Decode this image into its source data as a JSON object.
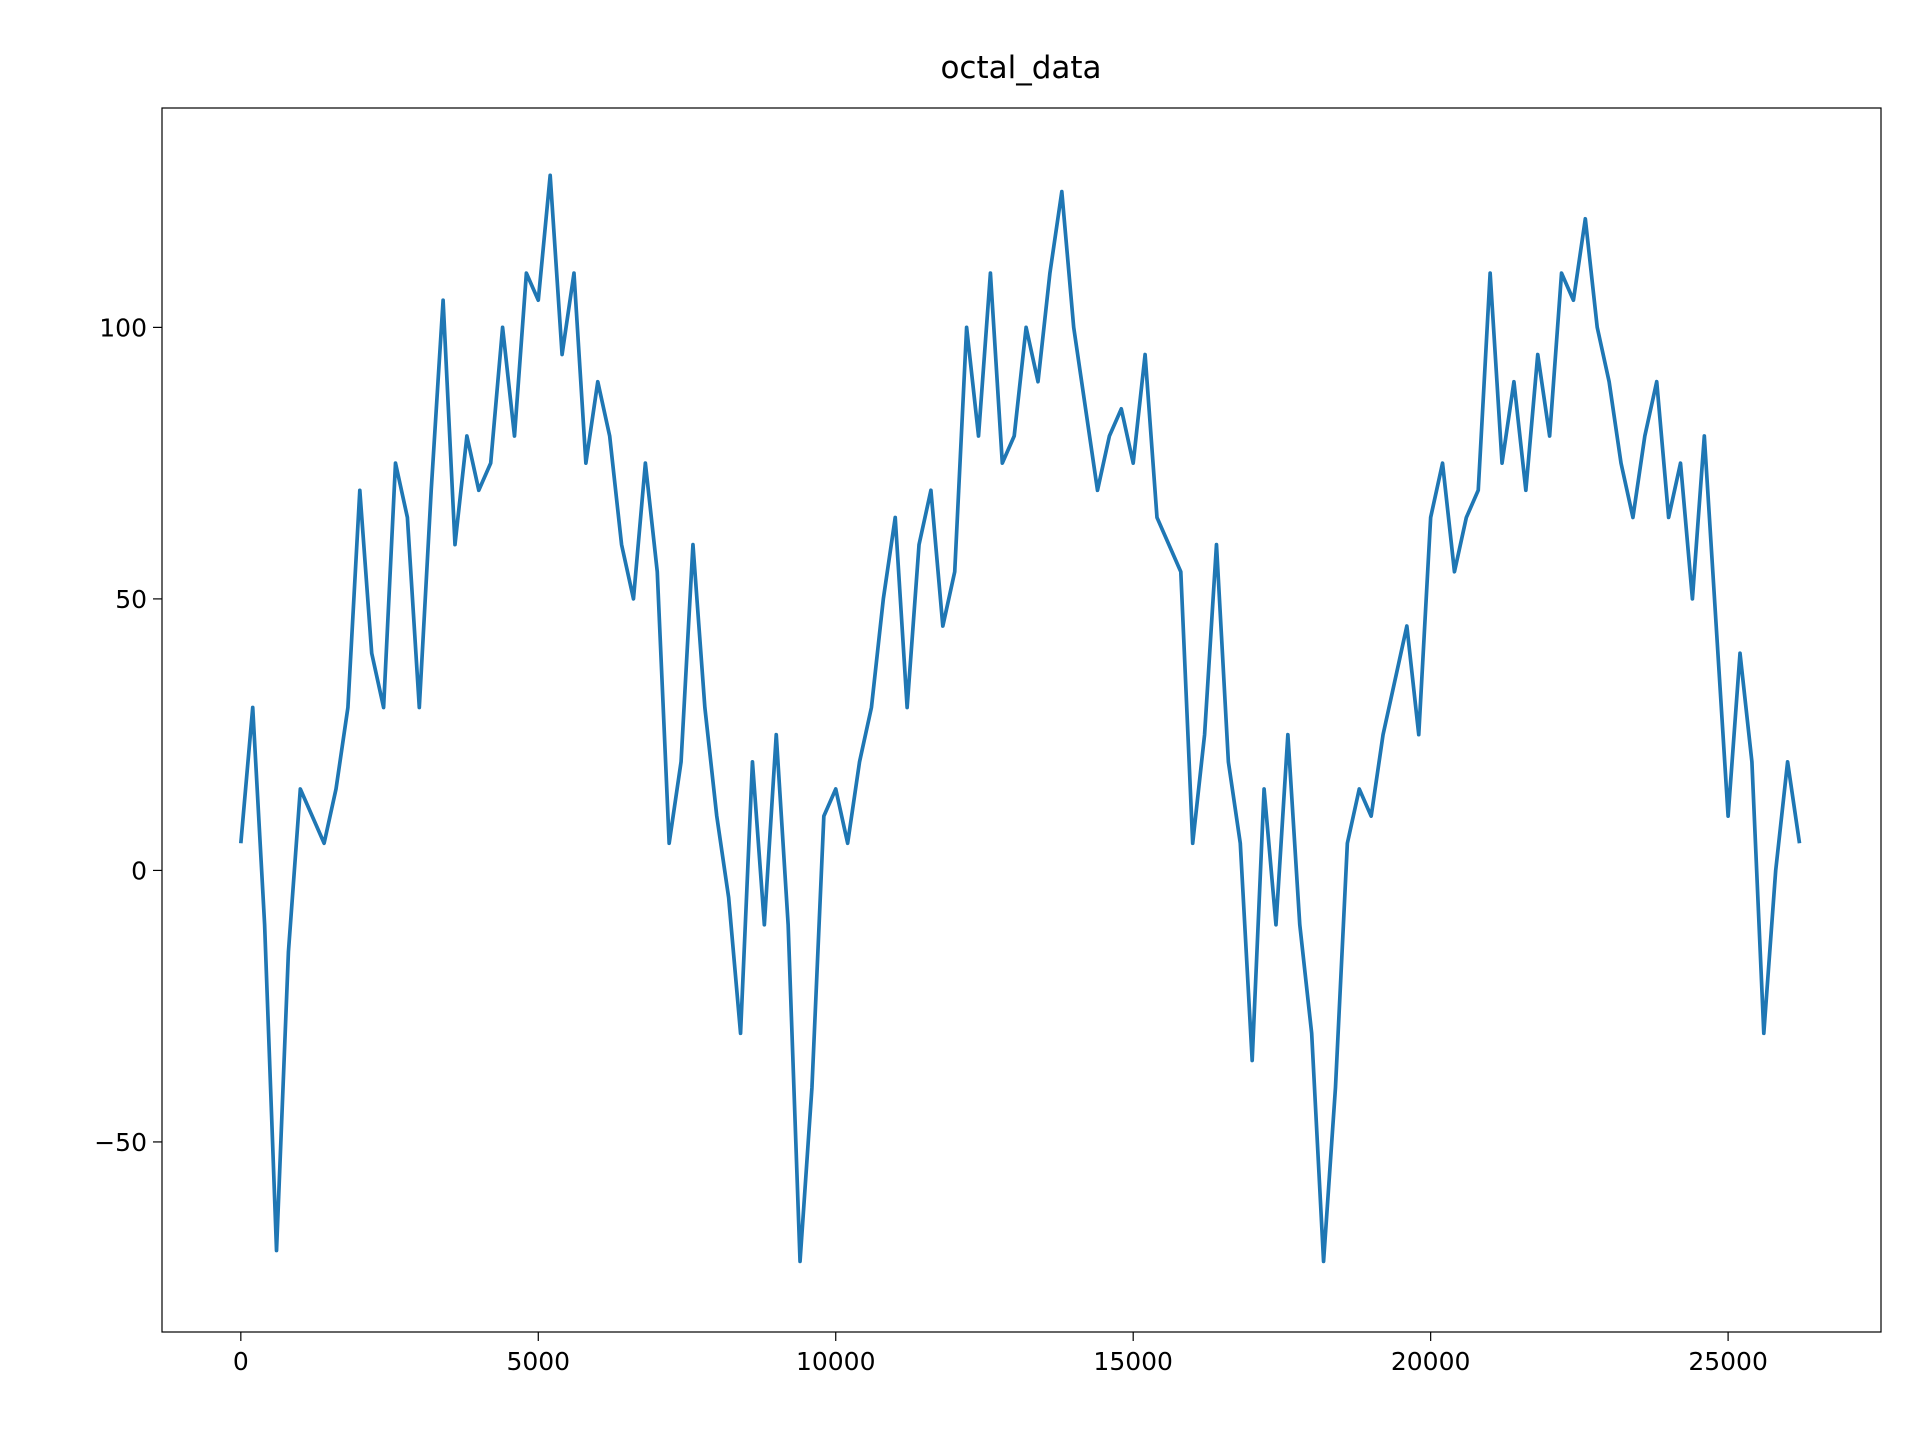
{
  "chart_data": {
    "type": "line",
    "title": "octal_data",
    "x": [
      0,
      200,
      400,
      600,
      800,
      1000,
      1200,
      1400,
      1600,
      1800,
      2000,
      2200,
      2400,
      2600,
      2800,
      3000,
      3200,
      3400,
      3600,
      3800,
      4000,
      4200,
      4400,
      4600,
      4800,
      5000,
      5200,
      5400,
      5600,
      5800,
      6000,
      6200,
      6400,
      6600,
      6800,
      7000,
      7200,
      7400,
      7600,
      7800,
      8000,
      8200,
      8400,
      8600,
      8800,
      9000,
      9200,
      9400,
      9600,
      9800,
      10000,
      10200,
      10400,
      10600,
      10800,
      11000,
      11200,
      11400,
      11600,
      11800,
      12000,
      12200,
      12400,
      12600,
      12800,
      13000,
      13200,
      13400,
      13600,
      13800,
      14000,
      14200,
      14400,
      14600,
      14800,
      15000,
      15200,
      15400,
      15600,
      15800,
      16000,
      16200,
      16400,
      16600,
      16800,
      17000,
      17200,
      17400,
      17600,
      17800,
      18000,
      18200,
      18400,
      18600,
      18800,
      19000,
      19200,
      19400,
      19600,
      19800,
      20000,
      20200,
      20400,
      20600,
      20800,
      21000,
      21200,
      21400,
      21600,
      21800,
      22000,
      22200,
      22400,
      22600,
      22800,
      23000,
      23200,
      23400,
      23600,
      23800,
      24000,
      24200,
      24400,
      24600,
      24800,
      25000,
      25200,
      25400,
      25600,
      25800,
      26000,
      26200
    ],
    "series": [
      {
        "color": "#1f77b4",
        "values": [
          5,
          30,
          -10,
          -70,
          -15,
          15,
          10,
          5,
          15,
          30,
          70,
          40,
          30,
          75,
          65,
          30,
          70,
          105,
          60,
          80,
          70,
          75,
          100,
          80,
          110,
          105,
          128,
          95,
          110,
          75,
          90,
          80,
          60,
          50,
          75,
          55,
          5,
          20,
          60,
          30,
          10,
          -5,
          -30,
          20,
          -10,
          25,
          -10,
          -72,
          -40,
          10,
          15,
          5,
          20,
          30,
          50,
          65,
          30,
          60,
          70,
          45,
          55,
          100,
          80,
          110,
          75,
          80,
          100,
          90,
          110,
          125,
          100,
          85,
          70,
          80,
          85,
          75,
          95,
          65,
          60,
          55,
          5,
          25,
          60,
          20,
          5,
          -35,
          15,
          -10,
          25,
          -10,
          -30,
          -72,
          -40,
          5,
          15,
          10,
          25,
          35,
          45,
          25,
          65,
          75,
          55,
          65,
          70,
          110,
          75,
          90,
          70,
          95,
          80,
          110,
          105,
          120,
          100,
          90,
          75,
          65,
          80,
          90,
          65,
          75,
          50,
          80,
          45,
          10,
          40,
          20,
          -30,
          0,
          20,
          5
        ]
      }
    ],
    "xlim": [
      -1325,
      27570
    ],
    "ylim": [
      -85,
      140.4
    ],
    "xticks": [
      0,
      5000,
      10000,
      15000,
      20000,
      25000
    ],
    "yticks": [
      {
        "value": -50,
        "label": "−50"
      },
      0,
      50,
      100
    ]
  }
}
